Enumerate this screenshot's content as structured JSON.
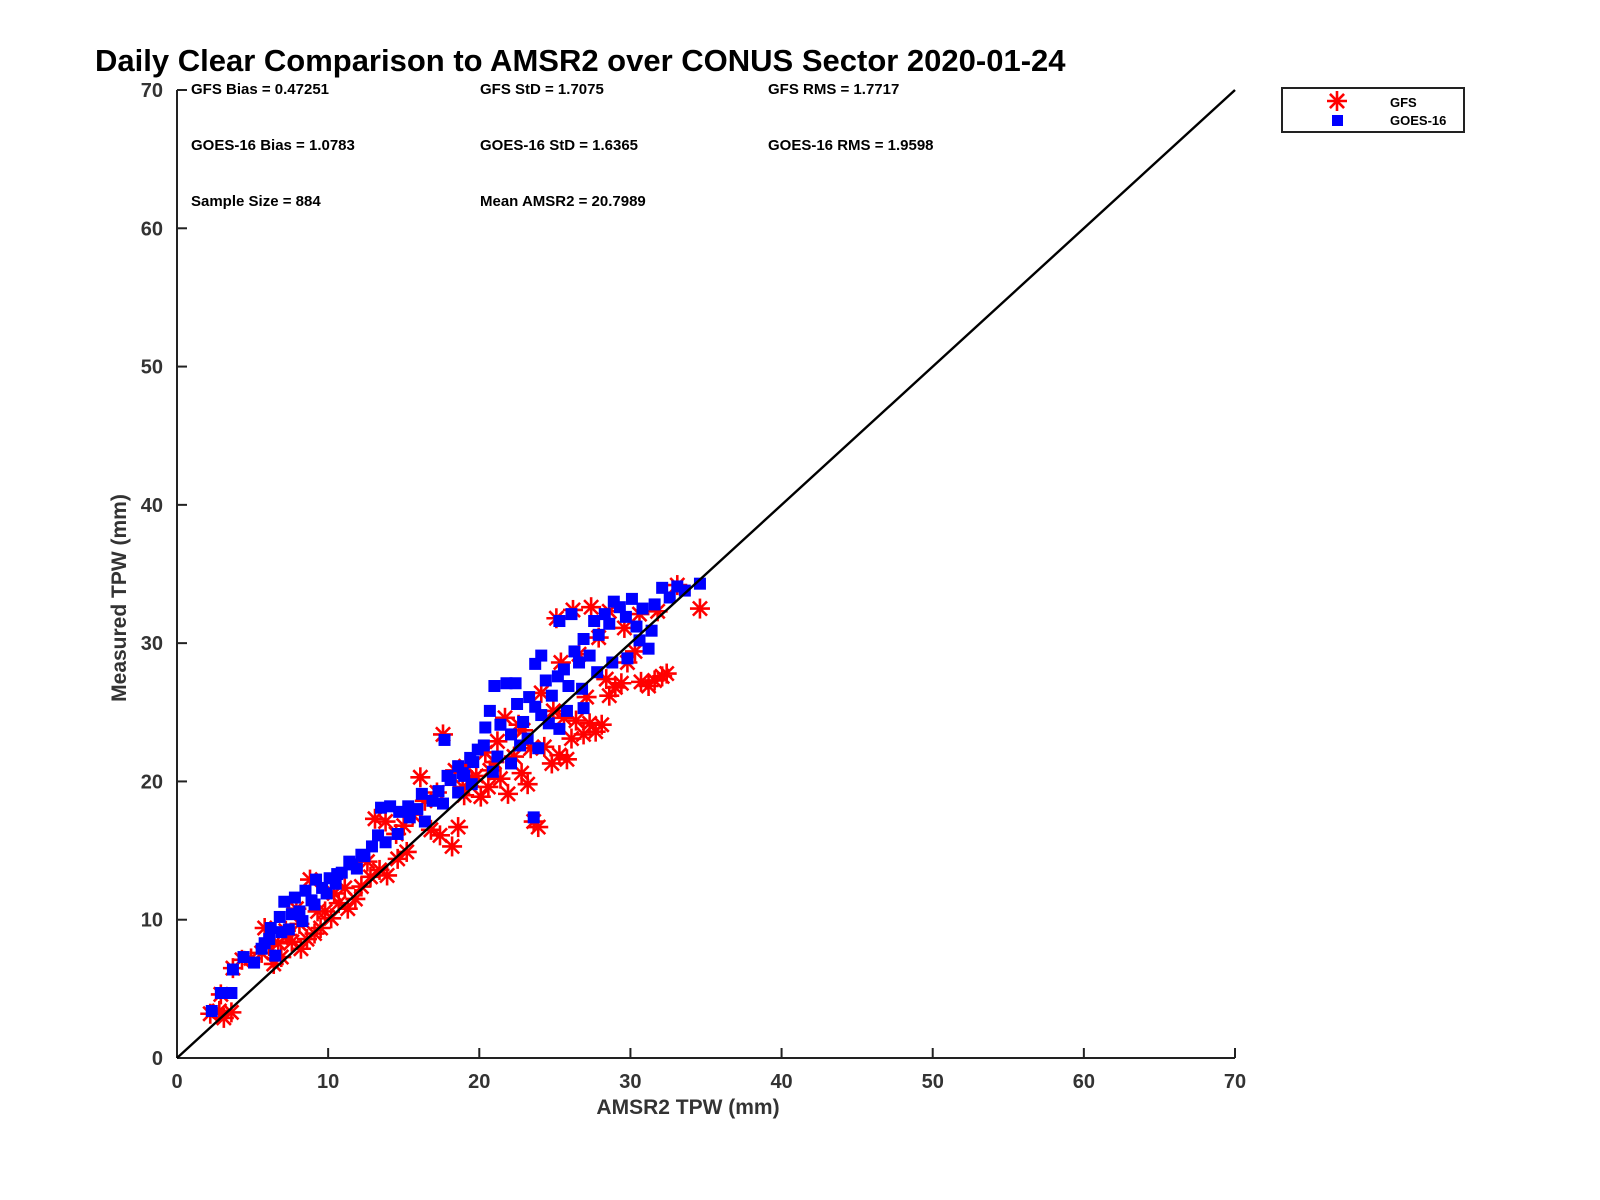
{
  "chart_data": {
    "type": "scatter",
    "title": "Daily Clear Comparison to AMSR2 over CONUS Sector 2020-01-24",
    "xlabel": "AMSR2 TPW (mm)",
    "ylabel": "Measured TPW (mm)",
    "xlim": [
      0,
      70
    ],
    "ylim": [
      0,
      70
    ],
    "xticks": [
      "0",
      "10",
      "20",
      "30",
      "40",
      "50",
      "60",
      "70"
    ],
    "yticks": [
      "0",
      "10",
      "20",
      "30",
      "40",
      "50",
      "60",
      "70"
    ],
    "grid": false,
    "legend": "top-right",
    "reference_line": "y = x",
    "stats": [
      "GFS Bias = 0.47251",
      "GFS StD = 1.7075",
      "GFS RMS = 1.7717",
      "GOES-16 Bias = 1.0783",
      "GOES-16 StD = 1.6365",
      "GOES-16 RMS = 1.9598",
      "Sample Size = 884",
      "Mean AMSR2 = 20.7989"
    ],
    "series": [
      {
        "name": "GFS",
        "marker": "asterisk",
        "color": "#ff0000",
        "points": [
          [
            2.2,
            3.2
          ],
          [
            2.8,
            3.4
          ],
          [
            3.1,
            2.9
          ],
          [
            3.6,
            3.3
          ],
          [
            2.9,
            4.6
          ],
          [
            3.7,
            6.5
          ],
          [
            4.3,
            7.1
          ],
          [
            4.9,
            7.2
          ],
          [
            5.6,
            7.6
          ],
          [
            6.1,
            8.1
          ],
          [
            6.4,
            6.8
          ],
          [
            6.9,
            7.3
          ],
          [
            7.2,
            9.2
          ],
          [
            7.6,
            8.4
          ],
          [
            8.2,
            7.9
          ],
          [
            8.6,
            8.6
          ],
          [
            9.1,
            9.0
          ],
          [
            9.5,
            9.4
          ],
          [
            9.8,
            10.6
          ],
          [
            10.2,
            10.1
          ],
          [
            10.7,
            11.2
          ],
          [
            11.3,
            10.8
          ],
          [
            11.8,
            11.5
          ],
          [
            12.2,
            12.4
          ],
          [
            12.8,
            13.1
          ],
          [
            13.4,
            13.6
          ],
          [
            13.9,
            13.2
          ],
          [
            14.6,
            14.4
          ],
          [
            15.2,
            14.9
          ],
          [
            13.1,
            17.3
          ],
          [
            13.8,
            17.1
          ],
          [
            14.5,
            16.2
          ],
          [
            16.1,
            20.3
          ],
          [
            16.8,
            16.5
          ],
          [
            17.4,
            16.1
          ],
          [
            17.6,
            23.4
          ],
          [
            18.2,
            15.3
          ],
          [
            18.6,
            16.7
          ],
          [
            19.0,
            19.0
          ],
          [
            19.5,
            20.1
          ],
          [
            20.1,
            18.9
          ],
          [
            20.6,
            19.6
          ],
          [
            21.0,
            21.4
          ],
          [
            21.4,
            20.2
          ],
          [
            21.9,
            19.1
          ],
          [
            22.3,
            21.8
          ],
          [
            22.8,
            20.6
          ],
          [
            23.2,
            19.8
          ],
          [
            23.6,
            17.1
          ],
          [
            23.9,
            16.7
          ],
          [
            24.3,
            22.5
          ],
          [
            24.8,
            21.3
          ],
          [
            25.3,
            21.9
          ],
          [
            25.8,
            21.6
          ],
          [
            26.1,
            23.1
          ],
          [
            26.4,
            24.4
          ],
          [
            26.9,
            23.4
          ],
          [
            27.3,
            24.2
          ],
          [
            27.7,
            23.6
          ],
          [
            28.1,
            24.1
          ],
          [
            28.6,
            26.2
          ],
          [
            29.0,
            26.8
          ],
          [
            29.4,
            27.1
          ],
          [
            29.8,
            28.6
          ],
          [
            30.3,
            29.4
          ],
          [
            30.7,
            27.2
          ],
          [
            31.2,
            26.9
          ],
          [
            31.6,
            27.3
          ],
          [
            32.1,
            27.6
          ],
          [
            32.4,
            27.8
          ],
          [
            25.4,
            28.6
          ],
          [
            25.1,
            31.8
          ],
          [
            26.2,
            32.4
          ],
          [
            27.4,
            32.6
          ],
          [
            28.6,
            32.3
          ],
          [
            30.6,
            32.1
          ],
          [
            31.8,
            32.3
          ],
          [
            33.1,
            34.2
          ],
          [
            34.6,
            32.5
          ],
          [
            22.9,
            23.7
          ],
          [
            21.7,
            24.6
          ],
          [
            24.9,
            25.1
          ],
          [
            23.4,
            22.4
          ],
          [
            20.4,
            22.1
          ],
          [
            19.1,
            21.1
          ],
          [
            18.4,
            20.8
          ],
          [
            17.2,
            19.2
          ],
          [
            16.4,
            18.6
          ],
          [
            15.6,
            17.6
          ],
          [
            15.0,
            16.8
          ],
          [
            12.6,
            14.2
          ],
          [
            11.1,
            12.3
          ],
          [
            10.4,
            11.9
          ],
          [
            9.3,
            10.6
          ],
          [
            8.1,
            9.7
          ],
          [
            7.3,
            8.9
          ],
          [
            6.7,
            8.3
          ],
          [
            5.8,
            9.4
          ],
          [
            8.8,
            12.9
          ],
          [
            7.9,
            10.8
          ],
          [
            27.9,
            30.4
          ],
          [
            29.6,
            31.1
          ],
          [
            26.6,
            29.2
          ],
          [
            24.1,
            26.4
          ],
          [
            22.6,
            24.1
          ],
          [
            21.2,
            22.9
          ],
          [
            20.7,
            20.8
          ],
          [
            19.8,
            20.4
          ],
          [
            18.9,
            19.6
          ],
          [
            28.4,
            27.4
          ],
          [
            27.1,
            26.1
          ],
          [
            25.6,
            24.6
          ]
        ]
      },
      {
        "name": "GOES-16",
        "marker": "square",
        "color": "#0000ff",
        "points": [
          [
            2.3,
            3.4
          ],
          [
            2.9,
            4.7
          ],
          [
            3.6,
            4.7
          ],
          [
            3.7,
            6.4
          ],
          [
            4.4,
            7.3
          ],
          [
            5.1,
            6.9
          ],
          [
            5.8,
            8.3
          ],
          [
            6.2,
            9.4
          ],
          [
            6.5,
            7.4
          ],
          [
            6.8,
            10.2
          ],
          [
            7.1,
            11.3
          ],
          [
            7.4,
            9.3
          ],
          [
            7.8,
            11.6
          ],
          [
            8.1,
            10.6
          ],
          [
            8.5,
            12.1
          ],
          [
            8.9,
            11.4
          ],
          [
            9.2,
            12.9
          ],
          [
            9.6,
            12.3
          ],
          [
            10.1,
            13.0
          ],
          [
            10.5,
            12.6
          ],
          [
            10.9,
            13.4
          ],
          [
            11.4,
            14.2
          ],
          [
            11.9,
            13.7
          ],
          [
            12.4,
            14.6
          ],
          [
            12.9,
            15.3
          ],
          [
            13.3,
            16.1
          ],
          [
            13.5,
            18.1
          ],
          [
            14.1,
            18.2
          ],
          [
            14.7,
            17.8
          ],
          [
            15.3,
            18.2
          ],
          [
            15.9,
            18.0
          ],
          [
            16.4,
            17.1
          ],
          [
            16.9,
            18.6
          ],
          [
            17.3,
            19.3
          ],
          [
            17.7,
            23.0
          ],
          [
            18.1,
            20.1
          ],
          [
            18.6,
            21.1
          ],
          [
            19.0,
            20.4
          ],
          [
            19.4,
            21.7
          ],
          [
            19.9,
            22.3
          ],
          [
            20.3,
            22.6
          ],
          [
            20.7,
            25.1
          ],
          [
            21.0,
            26.9
          ],
          [
            21.4,
            24.1
          ],
          [
            21.8,
            27.1
          ],
          [
            22.1,
            23.4
          ],
          [
            22.5,
            25.6
          ],
          [
            22.9,
            24.3
          ],
          [
            23.3,
            26.1
          ],
          [
            23.6,
            17.4
          ],
          [
            23.7,
            25.4
          ],
          [
            24.1,
            24.8
          ],
          [
            24.4,
            27.3
          ],
          [
            24.8,
            26.2
          ],
          [
            25.2,
            27.6
          ],
          [
            25.6,
            28.1
          ],
          [
            25.9,
            26.9
          ],
          [
            26.3,
            29.4
          ],
          [
            26.6,
            28.6
          ],
          [
            26.9,
            30.3
          ],
          [
            27.3,
            29.1
          ],
          [
            27.6,
            31.6
          ],
          [
            27.9,
            30.6
          ],
          [
            28.3,
            32.1
          ],
          [
            28.6,
            31.4
          ],
          [
            28.9,
            33.0
          ],
          [
            29.3,
            32.6
          ],
          [
            29.7,
            31.9
          ],
          [
            30.1,
            33.2
          ],
          [
            30.4,
            31.2
          ],
          [
            30.8,
            32.5
          ],
          [
            31.2,
            29.6
          ],
          [
            31.6,
            32.8
          ],
          [
            32.1,
            34.0
          ],
          [
            32.6,
            33.3
          ],
          [
            33.1,
            34.1
          ],
          [
            33.6,
            33.8
          ],
          [
            34.6,
            34.3
          ],
          [
            25.3,
            31.6
          ],
          [
            26.1,
            32.1
          ],
          [
            23.7,
            28.5
          ],
          [
            24.1,
            29.1
          ],
          [
            22.4,
            27.1
          ],
          [
            20.4,
            23.9
          ],
          [
            19.6,
            21.4
          ],
          [
            18.9,
            20.6
          ],
          [
            17.9,
            20.4
          ],
          [
            16.2,
            19.1
          ],
          [
            15.4,
            17.4
          ],
          [
            14.6,
            16.2
          ],
          [
            13.8,
            15.6
          ],
          [
            12.2,
            14.7
          ],
          [
            11.6,
            14.0
          ],
          [
            10.6,
            13.3
          ],
          [
            9.9,
            11.9
          ],
          [
            9.1,
            11.1
          ],
          [
            8.3,
            9.9
          ],
          [
            7.6,
            10.4
          ],
          [
            6.9,
            9.1
          ],
          [
            6.1,
            8.6
          ],
          [
            5.6,
            7.9
          ],
          [
            21.2,
            21.8
          ],
          [
            22.7,
            22.6
          ],
          [
            23.2,
            23.1
          ],
          [
            24.6,
            24.2
          ],
          [
            25.8,
            25.1
          ],
          [
            26.8,
            26.7
          ],
          [
            27.8,
            27.9
          ],
          [
            28.8,
            28.6
          ],
          [
            29.8,
            28.9
          ],
          [
            30.6,
            30.2
          ],
          [
            31.4,
            30.9
          ],
          [
            26.9,
            25.3
          ],
          [
            25.3,
            23.8
          ],
          [
            23.9,
            22.4
          ],
          [
            22.1,
            21.3
          ],
          [
            20.9,
            20.7
          ],
          [
            19.5,
            19.8
          ],
          [
            18.6,
            19.2
          ],
          [
            17.6,
            18.4
          ]
        ]
      }
    ]
  }
}
